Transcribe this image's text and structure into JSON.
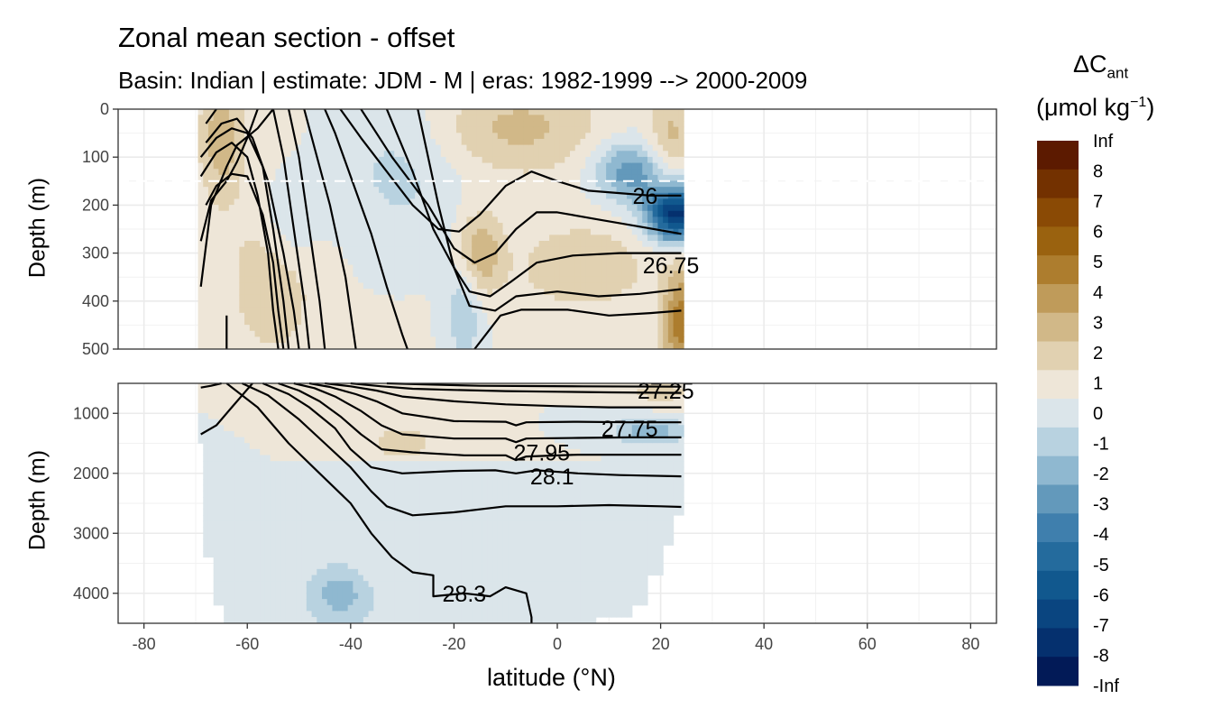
{
  "chart_data": {
    "type": "heatmap",
    "title": "Zonal mean section - offset",
    "subtitle": "Basin: Indian | estimate: JDM - M | eras: 1982-1999 --> 2000-2009",
    "xlabel": "latitude (°N)",
    "ylabel": "Depth (m)",
    "xlim": [
      -85,
      85
    ],
    "x_ticks": [
      "-80",
      "-60",
      "-40",
      "-20",
      "0",
      "20",
      "40",
      "60",
      "80"
    ],
    "data_extent_lat": [
      -69.5,
      24.5
    ],
    "grid": true,
    "panels": [
      {
        "name": "upper",
        "ylim": [
          0,
          500
        ],
        "y_ticks": [
          "0",
          "100",
          "200",
          "300",
          "400",
          "500"
        ],
        "reference_line_depth": 150
      },
      {
        "name": "lower",
        "ylim": [
          500,
          4500
        ],
        "y_ticks": [
          "1000",
          "2000",
          "3000",
          "4000"
        ]
      }
    ],
    "legend": {
      "title_main": "ΔC",
      "title_sub": "ant",
      "unit_main": "(μmol kg",
      "unit_sup": "−1",
      "unit_close": ")",
      "placement": "right",
      "labels": [
        "Inf",
        "8",
        "7",
        "6",
        "5",
        "4",
        "3",
        "2",
        "1",
        "0",
        "-1",
        "-2",
        "-3",
        "-4",
        "-5",
        "-6",
        "-7",
        "-8",
        "-Inf"
      ],
      "colors": [
        "#5c1a00",
        "#733100",
        "#8a4a05",
        "#9a620f",
        "#ad7d2e",
        "#bf9b5a",
        "#d1b888",
        "#e1d1b1",
        "#eee6d8",
        "#dbe5ea",
        "#b8d2e0",
        "#8fb8d0",
        "#6399bb",
        "#3f7fad",
        "#246b9d",
        "#11588e",
        "#0a4580",
        "#05306e",
        "#021a57"
      ]
    },
    "contours": [
      {
        "label": "26",
        "lat": 17,
        "depth": 180
      },
      {
        "label": "26.75",
        "lat": 22,
        "depth": 325
      },
      {
        "label": "27.25",
        "lat": 21,
        "depth": 620
      },
      {
        "label": "27.75",
        "lat": 14,
        "depth": 1250
      },
      {
        "label": "27.95",
        "lat": -3,
        "depth": 1650
      },
      {
        "label": "28.1",
        "lat": -1,
        "depth": 2050
      },
      {
        "label": "28.3",
        "lat": -18,
        "depth": 4000
      }
    ]
  }
}
